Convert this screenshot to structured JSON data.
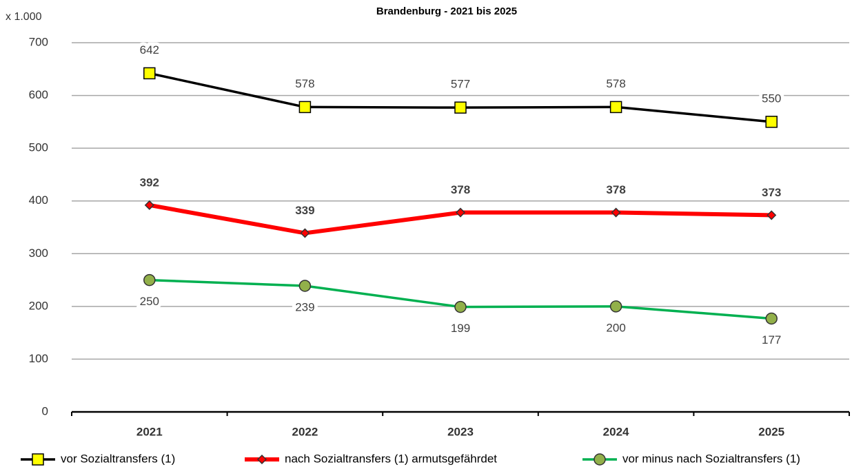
{
  "chart_data": {
    "type": "line",
    "title": "Brandenburg - 2021 bis 2025",
    "y_unit_label": "x 1.000",
    "categories": [
      "2021",
      "2022",
      "2023",
      "2024",
      "2025"
    ],
    "series": [
      {
        "name": "vor Sozialtransfers (1)",
        "color": "#000000",
        "marker": "square",
        "marker_color": "#ffff00",
        "values": [
          642,
          578,
          577,
          578,
          550
        ]
      },
      {
        "name": "nach Sozialtransfers (1) armutsgefährdet",
        "color": "#ff0000",
        "marker": "diamond",
        "marker_color": "#ff0000",
        "values": [
          392,
          339,
          378,
          378,
          373
        ]
      },
      {
        "name": "vor minus nach Sozialtransfers (1)",
        "color": "#00b050",
        "marker": "circle",
        "marker_color": "#92b04a",
        "values": [
          250,
          239,
          199,
          200,
          177
        ]
      }
    ],
    "ylim": [
      0,
      700
    ],
    "yticks": [
      0,
      100,
      200,
      300,
      400,
      500,
      600,
      700
    ],
    "grid": true,
    "legend": "bottom"
  }
}
